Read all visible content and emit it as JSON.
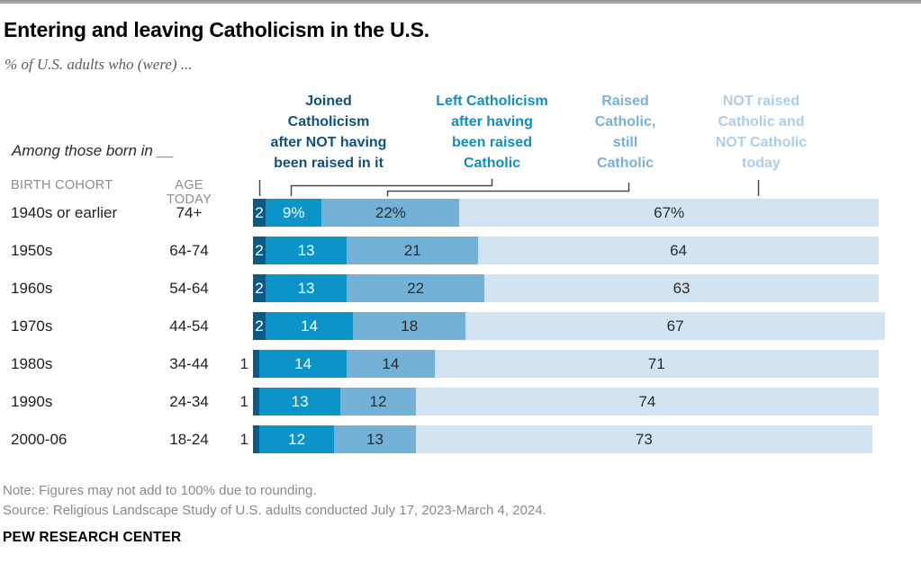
{
  "page": {
    "title": "Entering and leaving Catholicism in the U.S.",
    "subtitle": "% of U.S. adults who (were) ..."
  },
  "chart_data": {
    "type": "bar",
    "variant": "horizontal-stacked",
    "unit": "percent of U.S. adults",
    "group_label": "Among those born in __",
    "col_headers": {
      "cohort": "BIRTH COHORT",
      "age": "AGE TODAY"
    },
    "series": [
      {
        "name": "Joined Catholicism after NOT having been raised in it",
        "header_lines": "Joined\nCatholicism\nafter NOT having\nbeen raised in it",
        "color": "#0a5a88",
        "header_color": "#0e527d",
        "values": [
          2,
          2,
          2,
          2,
          1,
          1,
          1
        ]
      },
      {
        "name": "Left Catholicism after having been raised Catholic",
        "header_lines": "Left Catholicism\nafter having\nbeen raised\nCatholic",
        "color": "#0c93c7",
        "header_color": "#0f8ec3",
        "values": [
          9,
          13,
          13,
          14,
          14,
          13,
          12
        ]
      },
      {
        "name": "Raised Catholic, still Catholic",
        "header_lines": "Raised\nCatholic,\nstill\nCatholic",
        "color": "#74b1d7",
        "header_color": "#79b0d8",
        "values": [
          22,
          21,
          22,
          18,
          14,
          12,
          13
        ]
      },
      {
        "name": "NOT raised Catholic and NOT Catholic today",
        "header_lines": "NOT raised\nCatholic and\nNOT Catholic\ntoday",
        "color": "#d2e4f1",
        "header_color": "#accee9",
        "values": [
          67,
          64,
          63,
          67,
          71,
          74,
          73
        ]
      }
    ],
    "rows": [
      {
        "cohort": "1940s or earlier",
        "age": "74+",
        "labels": [
          "2",
          "9%",
          "22%",
          "67%"
        ]
      },
      {
        "cohort": "1950s",
        "age": "64-74",
        "labels": [
          "2",
          "13",
          "21",
          "64"
        ]
      },
      {
        "cohort": "1960s",
        "age": "54-64",
        "labels": [
          "2",
          "13",
          "22",
          "63"
        ]
      },
      {
        "cohort": "1970s",
        "age": "44-54",
        "labels": [
          "2",
          "14",
          "18",
          "67"
        ]
      },
      {
        "cohort": "1980s",
        "age": "34-44",
        "labels": [
          "1",
          "14",
          "14",
          "71"
        ]
      },
      {
        "cohort": "1990s",
        "age": "24-34",
        "labels": [
          "1",
          "13",
          "12",
          "74"
        ]
      },
      {
        "cohort": "2000-06",
        "age": "18-24",
        "labels": [
          "1",
          "12",
          "13",
          "73"
        ]
      }
    ],
    "label_text_colors": {
      "on_dark": "#ffffff",
      "on_light": "#2b2b2b"
    }
  },
  "footer": {
    "note": "Note: Figures may not add to 100% due to rounding.",
    "source": "Source: Religious Landscape Study of U.S. adults conducted July 17, 2023-March 4, 2024.",
    "brand": "PEW RESEARCH CENTER"
  }
}
